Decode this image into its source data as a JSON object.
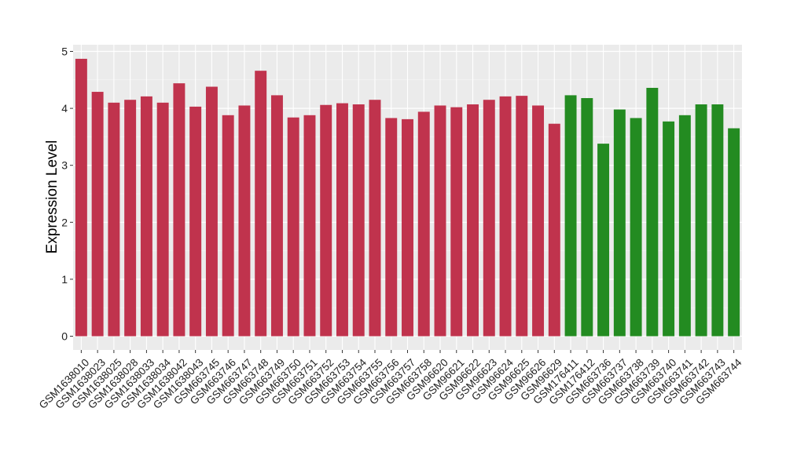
{
  "chart_data": {
    "type": "bar",
    "title": "",
    "xlabel": "",
    "ylabel": "Expression Level",
    "ylim": [
      0,
      5
    ],
    "yticks": [
      0,
      1,
      2,
      3,
      4,
      5
    ],
    "grid": true,
    "panel_background": "#ebebeb",
    "grid_color": "#ffffff",
    "categories": [
      "GSM1638010",
      "GSM1638023",
      "GSM1638025",
      "GSM1638028",
      "GSM1638033",
      "GSM1638034",
      "GSM1638042",
      "GSM1638043",
      "GSM663745",
      "GSM663746",
      "GSM663747",
      "GSM663748",
      "GSM663749",
      "GSM663750",
      "GSM663751",
      "GSM663752",
      "GSM663753",
      "GSM663754",
      "GSM663755",
      "GSM663756",
      "GSM663757",
      "GSM663758",
      "GSM96620",
      "GSM96621",
      "GSM96622",
      "GSM96623",
      "GSM96624",
      "GSM96625",
      "GSM96626",
      "GSM96629",
      "GSM176411",
      "GSM176412",
      "GSM663736",
      "GSM663737",
      "GSM663738",
      "GSM663739",
      "GSM663740",
      "GSM663741",
      "GSM663742",
      "GSM663743",
      "GSM663744"
    ],
    "values": [
      4.87,
      4.29,
      4.1,
      4.15,
      4.21,
      4.1,
      4.44,
      4.03,
      4.38,
      3.88,
      4.05,
      4.66,
      4.23,
      3.84,
      3.88,
      4.06,
      4.09,
      4.07,
      4.15,
      3.83,
      3.81,
      3.94,
      4.05,
      4.02,
      4.07,
      4.15,
      4.21,
      4.22,
      4.05,
      3.73,
      4.23,
      4.18,
      3.38,
      3.98,
      3.83,
      4.36,
      3.77,
      3.88,
      4.07,
      4.07,
      3.65
    ],
    "groups": [
      "red",
      "red",
      "red",
      "red",
      "red",
      "red",
      "red",
      "red",
      "red",
      "red",
      "red",
      "red",
      "red",
      "red",
      "red",
      "red",
      "red",
      "red",
      "red",
      "red",
      "red",
      "red",
      "red",
      "red",
      "red",
      "red",
      "red",
      "red",
      "red",
      "red",
      "green",
      "green",
      "green",
      "green",
      "green",
      "green",
      "green",
      "green",
      "green",
      "green",
      "green"
    ],
    "colors": {
      "red": "#c0334d",
      "green": "#238b21"
    }
  }
}
